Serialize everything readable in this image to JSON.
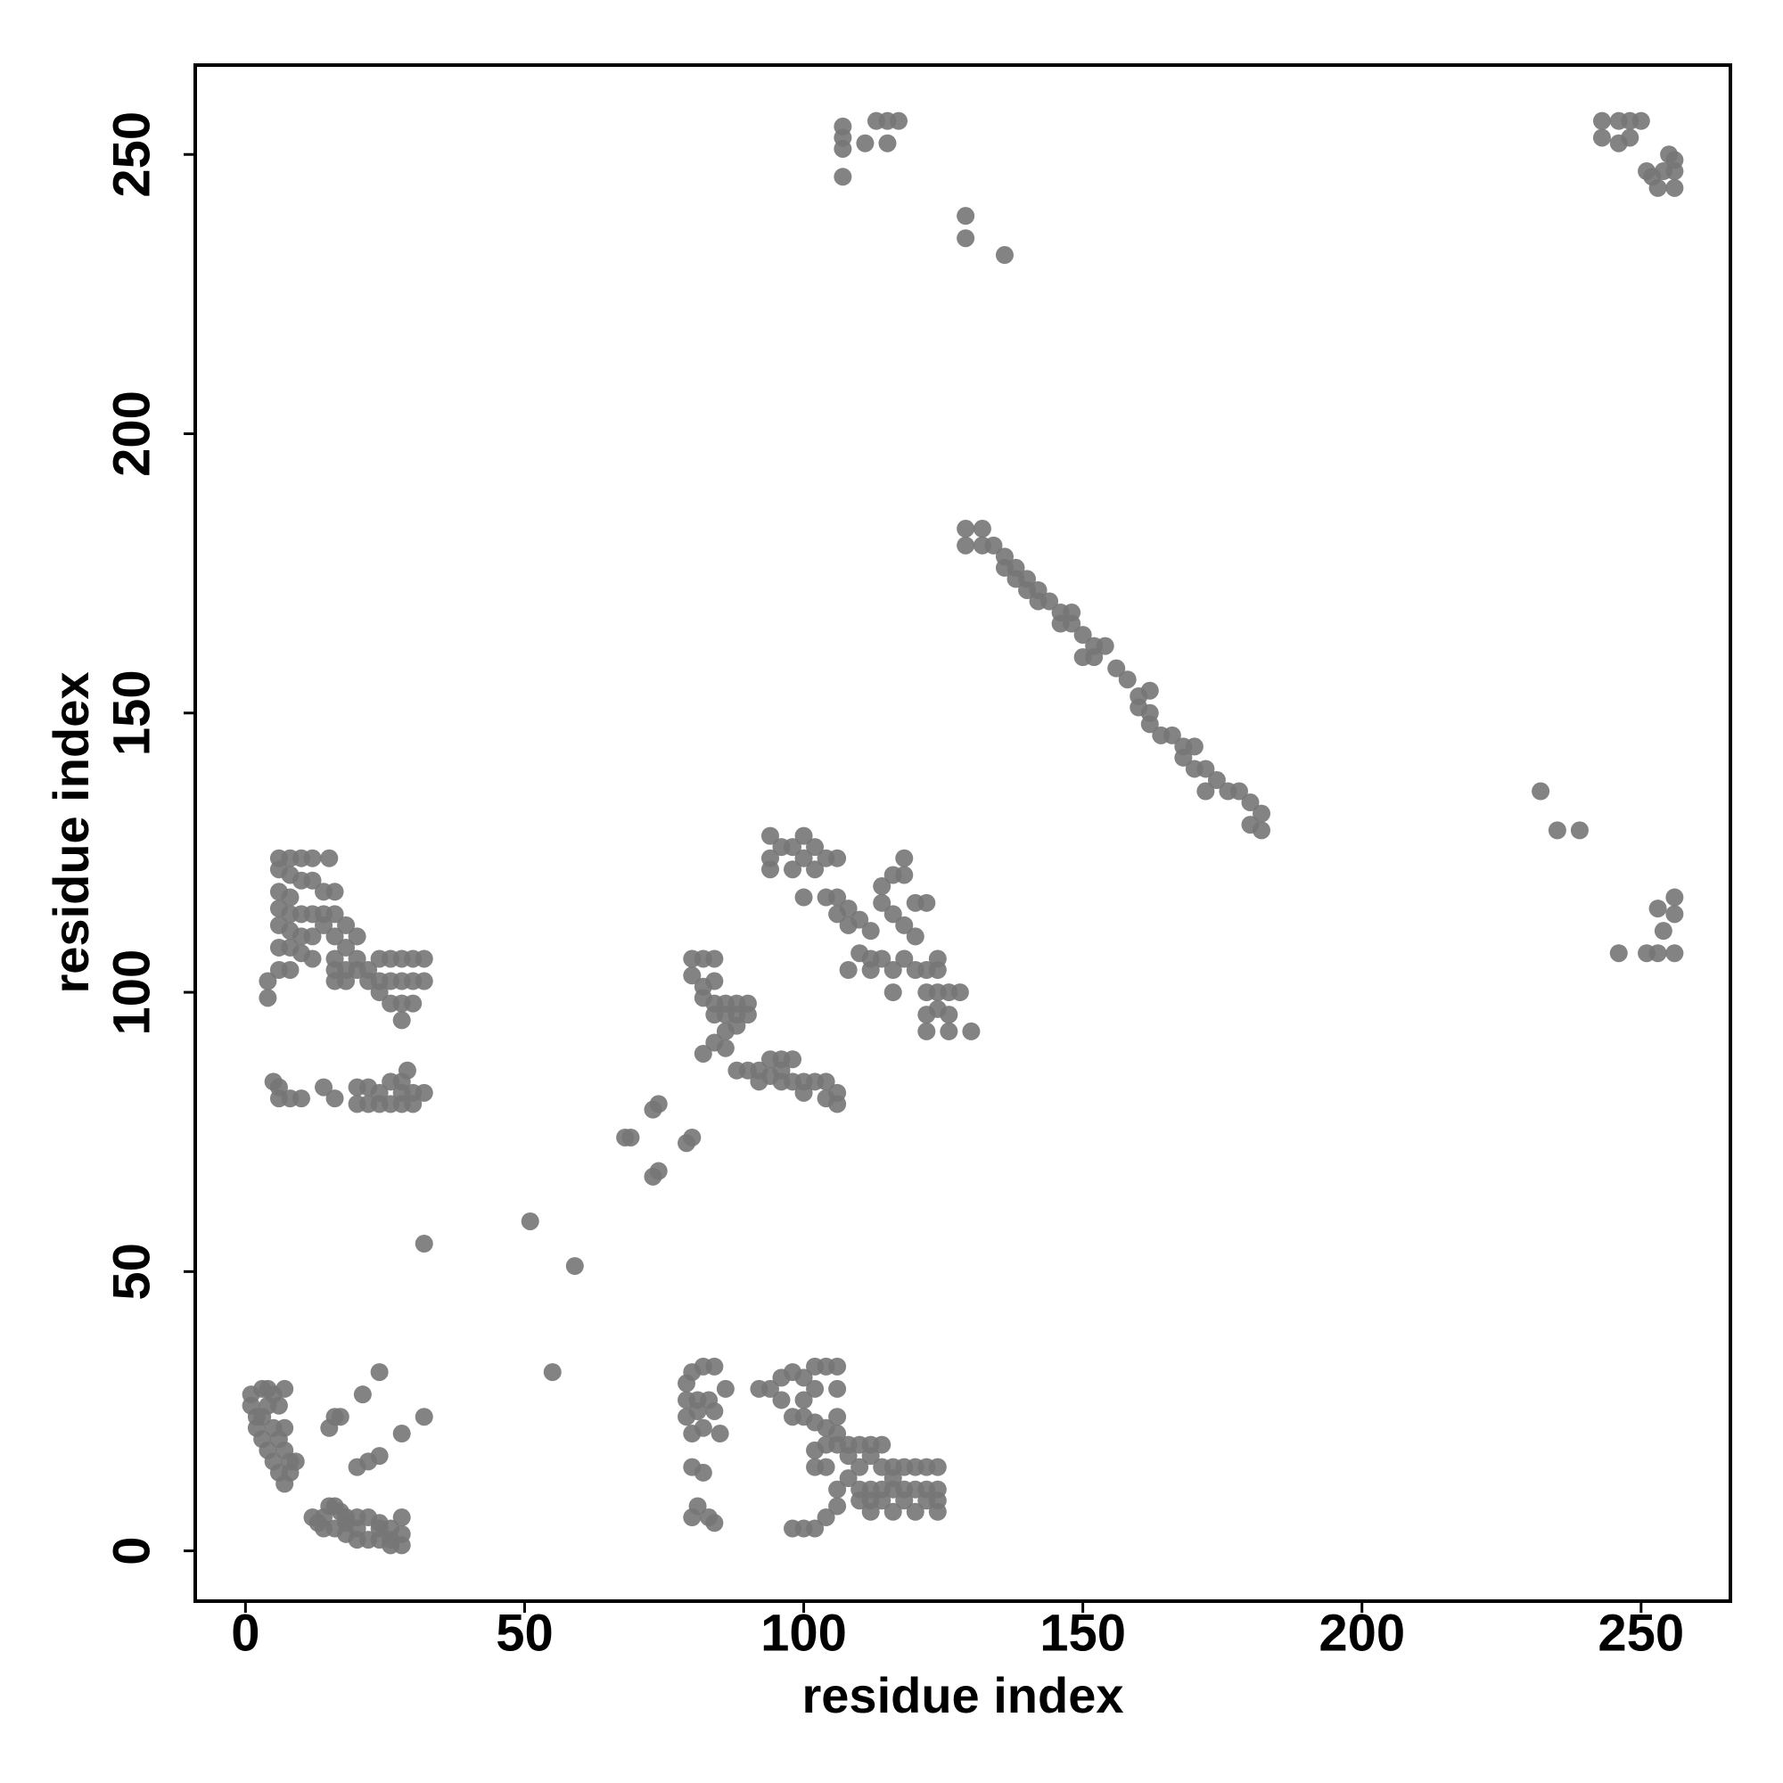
{
  "chart_data": {
    "type": "scatter",
    "x_label": "residue index",
    "y_label": "residue index",
    "xlim": [
      -9,
      266
    ],
    "ylim": [
      -9,
      266
    ],
    "xticks": [
      0,
      50,
      100,
      150,
      200,
      250
    ],
    "yticks": [
      0,
      50,
      100,
      150,
      200,
      250
    ],
    "color": "#767676",
    "x": [
      107,
      107,
      107,
      111,
      113,
      115,
      117,
      115,
      107,
      129,
      129,
      136,
      243,
      246,
      248,
      250,
      243,
      246,
      248,
      251,
      252,
      254,
      256,
      256,
      253,
      256,
      255,
      129,
      132,
      129,
      132,
      134,
      136,
      136,
      138,
      138,
      140,
      140,
      142,
      142,
      144,
      146,
      148,
      146,
      148,
      150,
      152,
      154,
      150,
      152,
      156,
      158,
      160,
      162,
      160,
      162,
      162,
      164,
      166,
      168,
      170,
      168,
      170,
      172,
      174,
      172,
      176,
      178,
      180,
      182,
      180,
      182,
      232,
      235,
      239,
      253,
      256,
      256,
      254,
      253,
      251,
      256,
      246,
      94,
      94,
      96,
      98,
      100,
      100,
      102,
      104,
      106,
      94,
      98,
      102,
      100,
      104,
      106,
      108,
      108,
      106,
      110,
      112,
      114,
      116,
      118,
      118,
      114,
      116,
      118,
      120,
      122,
      120,
      110,
      112,
      114,
      116,
      112,
      108,
      118,
      120,
      122,
      124,
      122,
      124,
      126,
      128,
      124,
      126,
      122,
      122,
      126,
      130,
      124,
      116,
      80,
      82,
      84,
      80,
      82,
      84,
      82,
      84,
      86,
      88,
      90,
      84,
      86,
      88,
      90,
      86,
      88,
      84,
      82,
      86,
      88,
      90,
      92,
      94,
      96,
      98,
      92,
      94,
      96,
      98,
      100,
      102,
      104,
      100,
      104,
      106,
      106,
      96,
      74,
      73,
      68,
      69,
      79,
      80,
      73,
      74,
      51,
      59,
      32,
      55,
      6,
      8,
      10,
      12,
      15,
      6,
      8,
      10,
      12,
      14,
      16,
      6,
      8,
      6,
      8,
      10,
      12,
      14,
      16,
      18,
      20,
      6,
      8,
      10,
      12,
      14,
      16,
      18,
      20,
      6,
      8,
      10,
      12,
      16,
      16,
      18,
      20,
      22,
      24,
      26,
      28,
      30,
      32,
      16,
      18,
      22,
      24,
      26,
      28,
      30,
      32,
      4,
      4,
      6,
      8,
      24,
      26,
      28,
      30,
      28,
      5,
      6,
      8,
      10,
      14,
      16,
      20,
      20,
      22,
      22,
      24,
      24,
      26,
      26,
      28,
      28,
      28,
      30,
      30,
      32,
      29,
      6,
      1,
      1,
      2,
      3,
      4,
      5,
      7,
      2,
      3,
      4,
      5,
      6,
      7,
      8,
      9,
      3,
      5,
      6,
      7,
      6,
      4,
      8,
      7,
      15,
      16,
      17,
      21,
      24,
      22,
      24,
      20,
      28,
      32,
      12,
      13,
      14,
      15,
      16,
      17,
      18,
      16,
      18,
      20,
      20,
      22,
      22,
      24,
      24,
      26,
      26,
      28,
      28,
      28,
      26,
      24,
      14,
      18,
      20,
      79,
      80,
      82,
      84,
      79,
      81,
      83,
      86,
      79,
      81,
      84,
      80,
      82,
      85,
      80,
      82,
      81,
      80,
      83,
      84,
      92,
      94,
      96,
      98,
      100,
      102,
      104,
      106,
      96,
      100,
      102,
      106,
      98,
      100,
      102,
      104,
      106,
      106,
      102,
      104,
      106,
      108,
      110,
      112,
      114,
      102,
      104,
      108,
      110,
      112,
      114,
      116,
      118,
      120,
      122,
      124,
      116,
      108,
      110,
      112,
      114,
      116,
      118,
      120,
      122,
      124,
      110,
      112,
      114,
      118,
      122,
      124,
      112,
      116,
      120,
      124,
      106,
      104,
      102,
      100,
      98,
      106
    ],
    "values": [
      255,
      251,
      253,
      252,
      256,
      256,
      256,
      252,
      246,
      239,
      235,
      232,
      256,
      256,
      256,
      256,
      253,
      252,
      253,
      247,
      246,
      247,
      249,
      247,
      244,
      244,
      250,
      183,
      183,
      180,
      180,
      180,
      178,
      176,
      176,
      174,
      174,
      172,
      172,
      170,
      170,
      168,
      168,
      166,
      166,
      164,
      162,
      162,
      160,
      160,
      158,
      156,
      153,
      154,
      151,
      150,
      148,
      146,
      146,
      144,
      144,
      142,
      140,
      140,
      138,
      136,
      136,
      136,
      134,
      132,
      130,
      129,
      136,
      129,
      129,
      115,
      117,
      114,
      111,
      107,
      107,
      107,
      107,
      128,
      124,
      126,
      126,
      128,
      124,
      126,
      124,
      124,
      122,
      122,
      122,
      117,
      117,
      117,
      115,
      112,
      114,
      113,
      111,
      119,
      121,
      121,
      124,
      116,
      114,
      112,
      116,
      116,
      110,
      107,
      106,
      106,
      104,
      104,
      104,
      106,
      104,
      104,
      104,
      100,
      100,
      100,
      100,
      97,
      96,
      96,
      93,
      93,
      93,
      106,
      100,
      106,
      106,
      106,
      103,
      101,
      102,
      99,
      98,
      98,
      98,
      98,
      96,
      96,
      96,
      96,
      93,
      94,
      91,
      89,
      90,
      86,
      86,
      86,
      88,
      88,
      88,
      84,
      85,
      84,
      84,
      84,
      84,
      84,
      82,
      81,
      82,
      80,
      86,
      80,
      79,
      74,
      74,
      73,
      74,
      67,
      68,
      59,
      51,
      55,
      32,
      124,
      124,
      124,
      124,
      124,
      122,
      121,
      120,
      120,
      118,
      118,
      118,
      117,
      115,
      114,
      114,
      114,
      114,
      114,
      112,
      110,
      112,
      111,
      110,
      110,
      112,
      110,
      108,
      106,
      108,
      108,
      107,
      106,
      106,
      104,
      104,
      104,
      104,
      106,
      106,
      106,
      106,
      106,
      102,
      102,
      102,
      102,
      102,
      102,
      102,
      102,
      102,
      99,
      104,
      104,
      100,
      98,
      98,
      98,
      95,
      84,
      81,
      81,
      81,
      83,
      81,
      83,
      80,
      83,
      80,
      82,
      80,
      84,
      80,
      84,
      82,
      80,
      82,
      80,
      82,
      86,
      83,
      28,
      26,
      24,
      29,
      29,
      28,
      29,
      22,
      20,
      18,
      16,
      14,
      12,
      14,
      16,
      24,
      22,
      20,
      18,
      26,
      26,
      16,
      22,
      22,
      24,
      24,
      28,
      32,
      16,
      17,
      15,
      21,
      24,
      6,
      5,
      6,
      8,
      8,
      7,
      5,
      4,
      3,
      2,
      6,
      6,
      2,
      5,
      2,
      4,
      1,
      6,
      3,
      1,
      2,
      4,
      4,
      6,
      4,
      30,
      32,
      33,
      33,
      27,
      27,
      27,
      29,
      24,
      25,
      25,
      21,
      22,
      21,
      15,
      14,
      8,
      6,
      6,
      5,
      29,
      29,
      31,
      32,
      31,
      33,
      33,
      33,
      27,
      27,
      29,
      29,
      24,
      24,
      23,
      22,
      24,
      21,
      18,
      19,
      19,
      19,
      19,
      19,
      19,
      15,
      15,
      17,
      15,
      17,
      15,
      15,
      15,
      15,
      15,
      15,
      13,
      13,
      11,
      11,
      11,
      11,
      11,
      11,
      11,
      11,
      9,
      9,
      9,
      9,
      9,
      9,
      7,
      7,
      7,
      7,
      8,
      6,
      4,
      4,
      4,
      11
    ]
  }
}
